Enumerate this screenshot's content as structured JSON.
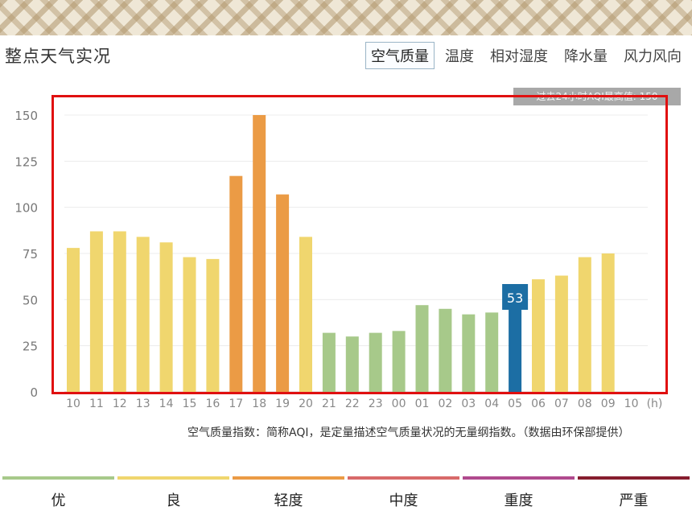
{
  "page": {
    "title": "整点天气实况",
    "tabs": [
      "空气质量",
      "温度",
      "相对湿度",
      "降水量",
      "风力风向"
    ],
    "active_tab": 0,
    "max_note": "过去24小时AQI最高值: 150",
    "aqi_note": "空气质量指数：简称AQI，是定量描述空气质量状况的无量纲指数。（数据由环保部提供）",
    "hover_value": "53"
  },
  "legend": [
    {
      "label": "优",
      "color": "#a7c98a"
    },
    {
      "label": "良",
      "color": "#f0d66e"
    },
    {
      "label": "轻度",
      "color": "#eb9b45"
    },
    {
      "label": "中度",
      "color": "#d86a6a"
    },
    {
      "label": "重度",
      "color": "#b04a8e"
    },
    {
      "label": "严重",
      "color": "#861d2e"
    }
  ],
  "chart_data": {
    "type": "bar",
    "categories": [
      "10",
      "11",
      "12",
      "13",
      "14",
      "15",
      "16",
      "17",
      "18",
      "19",
      "20",
      "21",
      "22",
      "23",
      "00",
      "01",
      "02",
      "03",
      "04",
      "05",
      "06",
      "07",
      "08",
      "09",
      "10"
    ],
    "values": [
      78,
      87,
      87,
      84,
      81,
      73,
      72,
      117,
      150,
      107,
      84,
      32,
      30,
      32,
      33,
      47,
      45,
      42,
      43,
      53,
      61,
      63,
      73,
      75,
      null
    ],
    "x_unit": "(h)",
    "yticks": [
      0,
      25,
      50,
      75,
      100,
      125,
      150
    ],
    "ylim": [
      0,
      155
    ],
    "highlight_index": 19,
    "highlight_color": "#1c6ea4",
    "category_colors": {
      "good": "#a7c98a",
      "moderate": "#f0d66e",
      "light": "#eb9b45"
    },
    "grid": true
  }
}
